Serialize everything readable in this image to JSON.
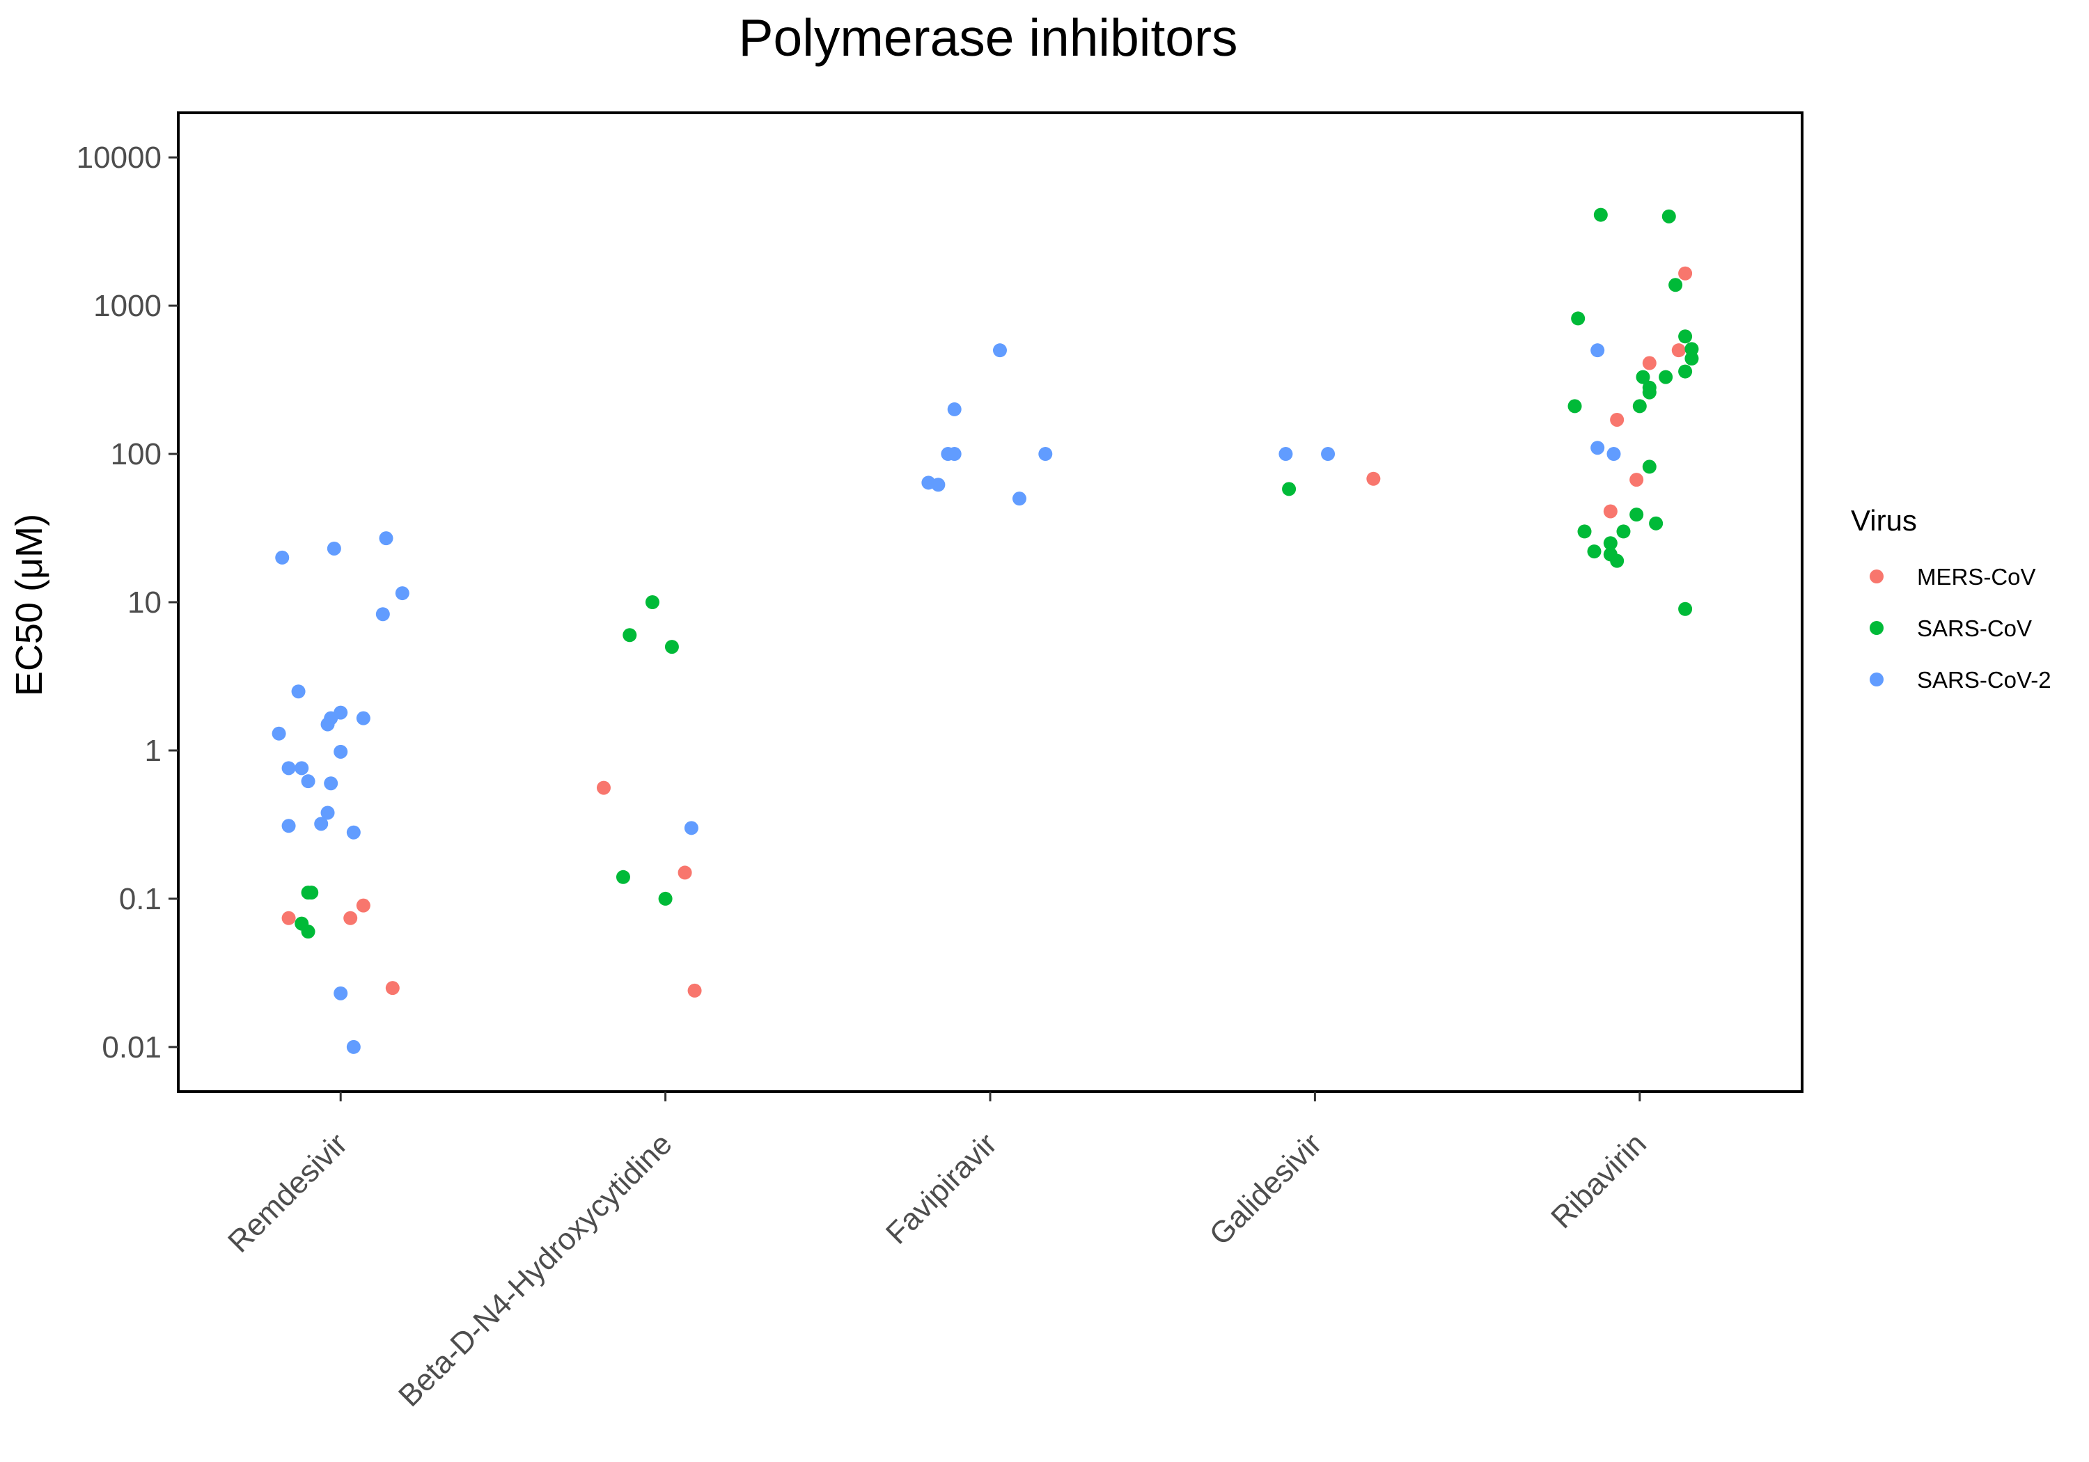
{
  "chart_data": {
    "type": "scatter",
    "title": "Polymerase inhibitors",
    "xlabel": "",
    "ylabel": "EC50 (μM)",
    "y_scale": "log10",
    "ylim": [
      0.005,
      20000
    ],
    "y_ticks": [
      0.01,
      0.1,
      1,
      10,
      100,
      1000,
      10000
    ],
    "y_tick_labels": [
      "0.01",
      "0.1",
      "1",
      "10",
      "100",
      "1000",
      "10000"
    ],
    "categories": [
      "Remdesivir",
      "Beta-D-N4-Hydroxycytidine",
      "Favipiravir",
      "Galidesivir",
      "Ribavirin"
    ],
    "grid": false,
    "legend": {
      "title": "Virus",
      "position": "right"
    },
    "series": [
      {
        "name": "MERS-CoV",
        "color": "#F8766D",
        "points": [
          {
            "category": "Remdesivir",
            "jitter": -0.16,
            "y": 0.074
          },
          {
            "category": "Remdesivir",
            "jitter": 0.03,
            "y": 0.074
          },
          {
            "category": "Remdesivir",
            "jitter": 0.07,
            "y": 0.09
          },
          {
            "category": "Remdesivir",
            "jitter": 0.16,
            "y": 0.025
          },
          {
            "category": "Beta-D-N4-Hydroxycytidine",
            "jitter": -0.19,
            "y": 0.56
          },
          {
            "category": "Beta-D-N4-Hydroxycytidine",
            "jitter": 0.06,
            "y": 0.15
          },
          {
            "category": "Beta-D-N4-Hydroxycytidine",
            "jitter": 0.09,
            "y": 0.024
          },
          {
            "category": "Galidesivir",
            "jitter": 0.18,
            "y": 68
          },
          {
            "category": "Ribavirin",
            "jitter": 0.14,
            "y": 1650
          },
          {
            "category": "Ribavirin",
            "jitter": 0.12,
            "y": 500
          },
          {
            "category": "Ribavirin",
            "jitter": 0.03,
            "y": 410
          },
          {
            "category": "Ribavirin",
            "jitter": -0.07,
            "y": 170
          },
          {
            "category": "Ribavirin",
            "jitter": -0.01,
            "y": 67
          },
          {
            "category": "Ribavirin",
            "jitter": -0.09,
            "y": 41
          }
        ]
      },
      {
        "name": "SARS-CoV",
        "color": "#00BA38",
        "points": [
          {
            "category": "Remdesivir",
            "jitter": -0.1,
            "y": 0.11
          },
          {
            "category": "Remdesivir",
            "jitter": -0.09,
            "y": 0.11
          },
          {
            "category": "Remdesivir",
            "jitter": -0.12,
            "y": 0.068
          },
          {
            "category": "Remdesivir",
            "jitter": -0.1,
            "y": 0.06
          },
          {
            "category": "Beta-D-N4-Hydroxycytidine",
            "jitter": -0.11,
            "y": 6
          },
          {
            "category": "Beta-D-N4-Hydroxycytidine",
            "jitter": -0.04,
            "y": 10
          },
          {
            "category": "Beta-D-N4-Hydroxycytidine",
            "jitter": 0.02,
            "y": 5
          },
          {
            "category": "Beta-D-N4-Hydroxycytidine",
            "jitter": -0.13,
            "y": 0.14
          },
          {
            "category": "Beta-D-N4-Hydroxycytidine",
            "jitter": 0.0,
            "y": 0.1
          },
          {
            "category": "Galidesivir",
            "jitter": -0.08,
            "y": 58
          },
          {
            "category": "Ribavirin",
            "jitter": -0.12,
            "y": 4100
          },
          {
            "category": "Ribavirin",
            "jitter": 0.09,
            "y": 4000
          },
          {
            "category": "Ribavirin",
            "jitter": 0.11,
            "y": 1380
          },
          {
            "category": "Ribavirin",
            "jitter": -0.19,
            "y": 820
          },
          {
            "category": "Ribavirin",
            "jitter": 0.14,
            "y": 620
          },
          {
            "category": "Ribavirin",
            "jitter": 0.16,
            "y": 510
          },
          {
            "category": "Ribavirin",
            "jitter": 0.16,
            "y": 440
          },
          {
            "category": "Ribavirin",
            "jitter": 0.14,
            "y": 360
          },
          {
            "category": "Ribavirin",
            "jitter": 0.08,
            "y": 330
          },
          {
            "category": "Ribavirin",
            "jitter": 0.01,
            "y": 330
          },
          {
            "category": "Ribavirin",
            "jitter": 0.03,
            "y": 280
          },
          {
            "category": "Ribavirin",
            "jitter": 0.03,
            "y": 260
          },
          {
            "category": "Ribavirin",
            "jitter": -0.2,
            "y": 210
          },
          {
            "category": "Ribavirin",
            "jitter": 0.0,
            "y": 210
          },
          {
            "category": "Ribavirin",
            "jitter": 0.03,
            "y": 82
          },
          {
            "category": "Ribavirin",
            "jitter": -0.01,
            "y": 39
          },
          {
            "category": "Ribavirin",
            "jitter": 0.05,
            "y": 34
          },
          {
            "category": "Ribavirin",
            "jitter": -0.17,
            "y": 30
          },
          {
            "category": "Ribavirin",
            "jitter": -0.05,
            "y": 30
          },
          {
            "category": "Ribavirin",
            "jitter": -0.09,
            "y": 25
          },
          {
            "category": "Ribavirin",
            "jitter": -0.14,
            "y": 22
          },
          {
            "category": "Ribavirin",
            "jitter": -0.09,
            "y": 21
          },
          {
            "category": "Ribavirin",
            "jitter": -0.07,
            "y": 19
          },
          {
            "category": "Ribavirin",
            "jitter": 0.14,
            "y": 9
          }
        ]
      },
      {
        "name": "SARS-CoV-2",
        "color": "#619CFF",
        "points": [
          {
            "category": "Remdesivir",
            "jitter": -0.18,
            "y": 20
          },
          {
            "category": "Remdesivir",
            "jitter": -0.02,
            "y": 23
          },
          {
            "category": "Remdesivir",
            "jitter": 0.14,
            "y": 27
          },
          {
            "category": "Remdesivir",
            "jitter": 0.19,
            "y": 11.5
          },
          {
            "category": "Remdesivir",
            "jitter": 0.13,
            "y": 8.3
          },
          {
            "category": "Remdesivir",
            "jitter": -0.13,
            "y": 2.5
          },
          {
            "category": "Remdesivir",
            "jitter": 0.0,
            "y": 1.8
          },
          {
            "category": "Remdesivir",
            "jitter": -0.03,
            "y": 1.65
          },
          {
            "category": "Remdesivir",
            "jitter": 0.07,
            "y": 1.65
          },
          {
            "category": "Remdesivir",
            "jitter": -0.04,
            "y": 1.5
          },
          {
            "category": "Remdesivir",
            "jitter": -0.19,
            "y": 1.3
          },
          {
            "category": "Remdesivir",
            "jitter": 0.0,
            "y": 0.98
          },
          {
            "category": "Remdesivir",
            "jitter": -0.16,
            "y": 0.76
          },
          {
            "category": "Remdesivir",
            "jitter": -0.12,
            "y": 0.76
          },
          {
            "category": "Remdesivir",
            "jitter": -0.1,
            "y": 0.62
          },
          {
            "category": "Remdesivir",
            "jitter": -0.03,
            "y": 0.6
          },
          {
            "category": "Remdesivir",
            "jitter": -0.04,
            "y": 0.38
          },
          {
            "category": "Remdesivir",
            "jitter": -0.16,
            "y": 0.31
          },
          {
            "category": "Remdesivir",
            "jitter": -0.06,
            "y": 0.32
          },
          {
            "category": "Remdesivir",
            "jitter": 0.04,
            "y": 0.28
          },
          {
            "category": "Remdesivir",
            "jitter": 0.0,
            "y": 0.023
          },
          {
            "category": "Remdesivir",
            "jitter": 0.04,
            "y": 0.01
          },
          {
            "category": "Beta-D-N4-Hydroxycytidine",
            "jitter": 0.08,
            "y": 0.3
          },
          {
            "category": "Favipiravir",
            "jitter": 0.03,
            "y": 500
          },
          {
            "category": "Favipiravir",
            "jitter": -0.11,
            "y": 200
          },
          {
            "category": "Favipiravir",
            "jitter": -0.13,
            "y": 100
          },
          {
            "category": "Favipiravir",
            "jitter": -0.11,
            "y": 100
          },
          {
            "category": "Favipiravir",
            "jitter": 0.17,
            "y": 100
          },
          {
            "category": "Favipiravir",
            "jitter": -0.19,
            "y": 64
          },
          {
            "category": "Favipiravir",
            "jitter": -0.16,
            "y": 62
          },
          {
            "category": "Favipiravir",
            "jitter": 0.09,
            "y": 50
          },
          {
            "category": "Galidesivir",
            "jitter": -0.09,
            "y": 100
          },
          {
            "category": "Galidesivir",
            "jitter": 0.04,
            "y": 100
          },
          {
            "category": "Ribavirin",
            "jitter": -0.13,
            "y": 500
          },
          {
            "category": "Ribavirin",
            "jitter": -0.13,
            "y": 110
          },
          {
            "category": "Ribavirin",
            "jitter": -0.08,
            "y": 100
          }
        ]
      }
    ]
  }
}
